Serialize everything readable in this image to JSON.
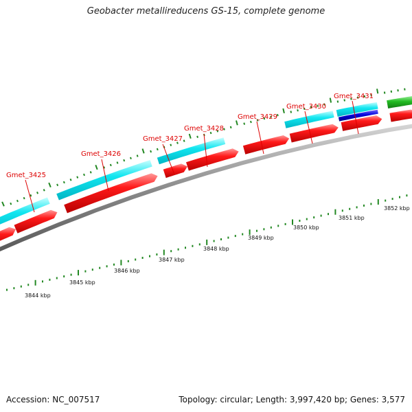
{
  "title": "Geobacter metallireducens GS-15, complete genome",
  "footer": {
    "accession": "Accession: NC_007517",
    "summary": "Topology: circular; Length: 3,997,420 bp; Genes: 3,577"
  },
  "colors": {
    "background": "#ffffff",
    "gene_label": "#dd0000",
    "cds_forward": "#ff0000",
    "feature_cyan": "#00e5f0",
    "feature_blue": "#0000cc",
    "feature_green": "#22bb22",
    "backbone": "#888888",
    "ticks": "#228822"
  },
  "gene_labels": [
    "Gmet_3425",
    "Gmet_3426",
    "Gmet_3427",
    "Gmet_3428",
    "Gmet_3429",
    "Gmet_3430",
    "Gmet_3431"
  ],
  "scale_labels": [
    "3844 kbp",
    "3845 kbp",
    "3846 kbp",
    "3847 kbp",
    "3848 kbp",
    "3849 kbp",
    "3850 kbp",
    "3851 kbp",
    "3852 kbp"
  ]
}
